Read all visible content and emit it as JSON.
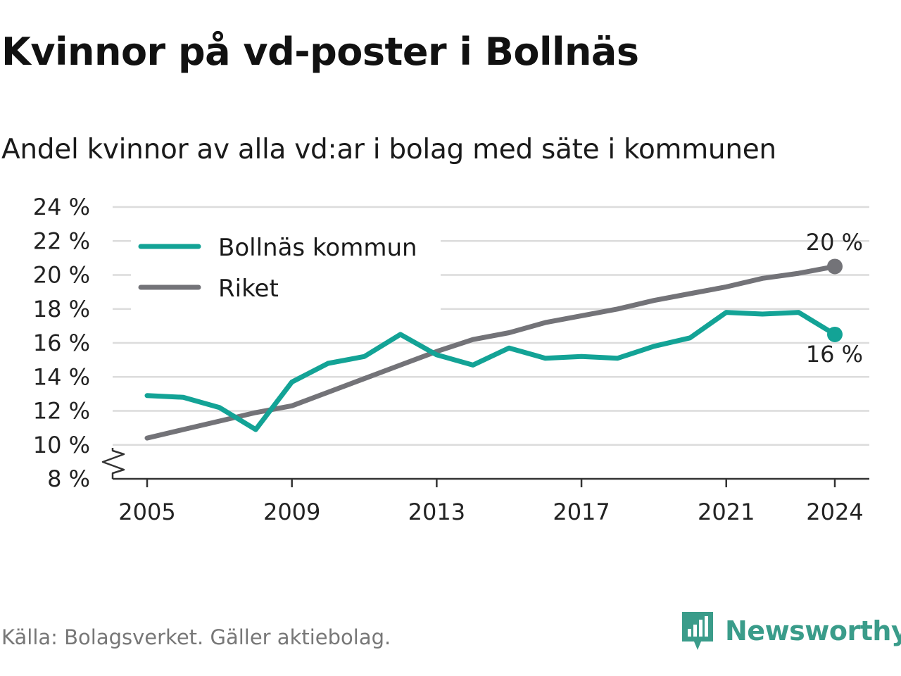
{
  "title": "Kvinnor på vd-poster i Bollnäs",
  "subtitle": "Andel kvinnor av alla vd:ar i bolag med säte i kommunen",
  "source": "Källa: Bolagsverket. Gäller aktiebolag.",
  "brand": "Newsworthy",
  "colors": {
    "bollnas": "#13a396",
    "riket": "#737378",
    "grid": "#dcdcdc",
    "brand": "#3a9c8a"
  },
  "chart_data": {
    "type": "line",
    "title": "Kvinnor på vd-poster i Bollnäs",
    "subtitle": "Andel kvinnor av alla vd:ar i bolag med säte i kommunen",
    "x": [
      2005,
      2006,
      2007,
      2008,
      2009,
      2010,
      2011,
      2012,
      2013,
      2014,
      2015,
      2016,
      2017,
      2018,
      2019,
      2020,
      2021,
      2022,
      2023,
      2024
    ],
    "series": [
      {
        "name": "Bollnäs kommun",
        "color": "#13a396",
        "values": [
          12.9,
          12.8,
          12.2,
          10.9,
          13.7,
          14.8,
          15.2,
          16.5,
          15.3,
          14.7,
          15.7,
          15.1,
          15.2,
          15.1,
          15.8,
          16.3,
          17.8,
          17.7,
          17.8,
          16.5
        ]
      },
      {
        "name": "Riket",
        "color": "#737378",
        "values": [
          10.4,
          10.9,
          11.4,
          11.9,
          12.3,
          13.1,
          13.9,
          14.7,
          15.5,
          16.2,
          16.6,
          17.2,
          17.6,
          18.0,
          18.5,
          18.9,
          19.3,
          19.8,
          20.1,
          20.5
        ]
      }
    ],
    "ylim": [
      8,
      24
    ],
    "y_ticks": [
      "8 %",
      "10 %",
      "12 %",
      "14 %",
      "16 %",
      "18 %",
      "20 %",
      "22 %",
      "24 %"
    ],
    "x_ticks": [
      "2005",
      "2009",
      "2013",
      "2017",
      "2021",
      "2024"
    ],
    "end_labels": {
      "riket": "20 %",
      "bollnas": "16 %"
    },
    "axis_break": true,
    "grid": true,
    "legend_position": "top-left"
  }
}
